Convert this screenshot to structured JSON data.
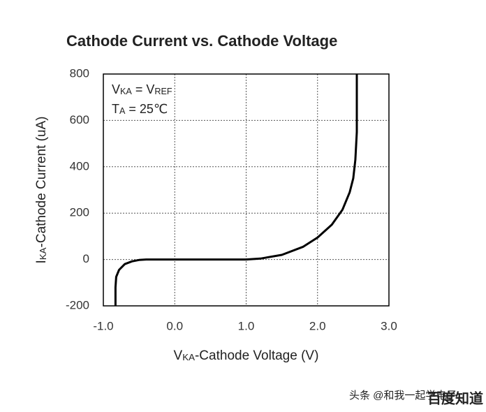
{
  "chart_data": {
    "type": "line",
    "title": "Cathode Current vs. Cathode Voltage",
    "xlabel": [
      "V",
      "KA",
      "-Cathode Voltage (V)"
    ],
    "ylabel": [
      "I",
      "KA",
      "-Cathode Current (uA)"
    ],
    "annotations": [
      [
        "V",
        "KA",
        " = V",
        "REF"
      ],
      [
        "T",
        "A",
        " = 25℃"
      ]
    ],
    "watermark": [
      "头条 @和我一起学电子",
      "百度知道"
    ],
    "x": [
      -0.83,
      -0.83,
      -0.82,
      -0.78,
      -0.7,
      -0.6,
      -0.5,
      -0.4,
      0.0,
      0.5,
      1.0,
      1.2,
      1.5,
      1.8,
      2.0,
      2.2,
      2.35,
      2.45,
      2.5,
      2.53,
      2.55,
      2.55
    ],
    "values": [
      -200,
      -120,
      -75,
      -45,
      -20,
      -8,
      -2,
      0,
      0,
      0,
      0,
      4,
      20,
      55,
      95,
      150,
      215,
      290,
      350,
      430,
      550,
      800
    ],
    "color": "#000000",
    "xlim": [
      -1.0,
      3.0
    ],
    "xticks": [
      {
        "value": -1,
        "label": "-1.0"
      },
      {
        "value": 0,
        "label": "0.0"
      },
      {
        "value": 1,
        "label": "1.0"
      },
      {
        "value": 2,
        "label": "2.0"
      },
      {
        "value": 3,
        "label": "3.0"
      }
    ],
    "ylim": [
      -200,
      800
    ],
    "yticks": [
      -200,
      0,
      200,
      400,
      600,
      800
    ],
    "grid": true
  }
}
